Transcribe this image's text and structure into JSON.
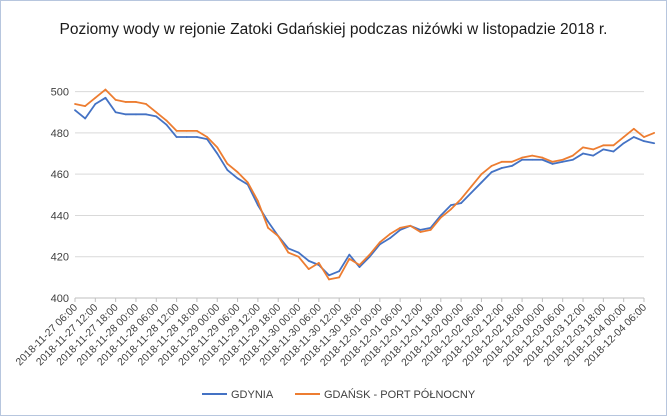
{
  "chart_data": {
    "type": "line",
    "title": "Poziomy wody w rejonie Zatoki Gdańskiej podczas niżówki w listopadzie 2018 r.",
    "xlabel": "",
    "ylabel": "",
    "ylim": [
      400,
      510
    ],
    "y_ticks": [
      "400",
      "420",
      "440",
      "460",
      "480",
      "500"
    ],
    "x_ticks": [
      "2018-11-27 06:00",
      "2018-11-27 12:00",
      "2018-11-27 18:00",
      "2018-11-28 00:00",
      "2018-11-28 06:00",
      "2018-11-28 12:00",
      "2018-11-28 18:00",
      "2018-11-29 00:00",
      "2018-11-29 06:00",
      "2018-11-29 12:00",
      "2018-11-29 18:00",
      "2018-11-30 00:00",
      "2018-11-30 06:00",
      "2018-11-30 12:00",
      "2018-11-30 18:00",
      "2018-12-01 00:00",
      "2018-12-01 06:00",
      "2018-12-01 12:00",
      "2018-12-01 18:00",
      "2018-12-02 00:00",
      "2018-12-02 06:00",
      "2018-12-02 12:00",
      "2018-12-02 18:00",
      "2018-12-03 00:00",
      "2018-12-03 06:00",
      "2018-12-03 12:00",
      "2018-12-03 18:00",
      "2018-12-04 00:00",
      "2018-12-04 06:00"
    ],
    "grid": true,
    "legend_position": "bottom",
    "x_hours": [
      0,
      3,
      6,
      9,
      12,
      15,
      18,
      21,
      24,
      27,
      30,
      33,
      36,
      39,
      42,
      45,
      48,
      51,
      54,
      57,
      60,
      63,
      66,
      69,
      72,
      75,
      78,
      81,
      84,
      87,
      90,
      93,
      96,
      99,
      102,
      105,
      108,
      111,
      114,
      117,
      120,
      123,
      126,
      129,
      132,
      135,
      138,
      141,
      144,
      147,
      150,
      153,
      156,
      159,
      162,
      165,
      168,
      171
    ],
    "series": [
      {
        "name": "GDYNIA",
        "color": "#4472c4",
        "values": [
          491,
          487,
          494,
          497,
          490,
          489,
          489,
          489,
          488,
          484,
          478,
          478,
          478,
          477,
          470,
          462,
          458,
          455,
          445,
          437,
          430,
          424,
          422,
          418,
          416,
          411,
          413,
          421,
          415,
          420,
          426,
          429,
          433,
          435,
          433,
          434,
          440,
          445,
          446,
          451,
          456,
          461,
          463,
          464,
          467,
          467,
          467,
          465,
          466,
          467,
          470,
          469,
          472,
          471,
          475,
          478,
          476,
          475
        ]
      },
      {
        "name": "GDAŃSK - PORT PÓŁNOCNY",
        "color": "#ed7d31",
        "values": [
          494,
          493,
          497,
          501,
          496,
          495,
          495,
          494,
          490,
          486,
          481,
          481,
          481,
          478,
          473,
          465,
          461,
          456,
          447,
          434,
          430,
          422,
          420,
          414,
          417,
          409,
          410,
          419,
          416,
          421,
          427,
          431,
          434,
          435,
          432,
          433,
          439,
          443,
          448,
          454,
          460,
          464,
          466,
          466,
          468,
          469,
          468,
          466,
          467,
          469,
          473,
          472,
          474,
          474,
          478,
          482,
          478,
          480
        ]
      }
    ]
  }
}
